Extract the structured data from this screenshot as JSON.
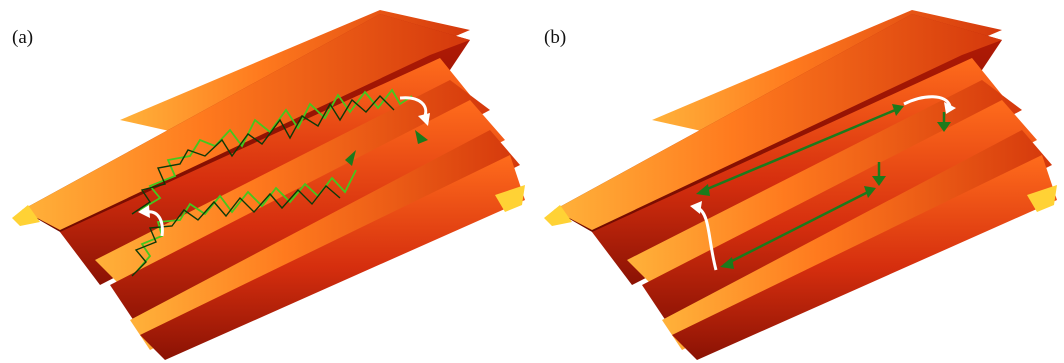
{
  "figure": {
    "panels": [
      {
        "id": "a",
        "label": "(a)",
        "content": "trajectory"
      },
      {
        "id": "b",
        "label": "(b)",
        "content": "schematic-path"
      }
    ],
    "colors": {
      "surface_dark": "#7a0d00",
      "surface_mid": "#c8260c",
      "surface_light": "#ff6a18",
      "surface_rim": "#ffcf2a",
      "trajectory_light_green": "#44c81e",
      "trajectory_dark": "#0d3a08",
      "path_green": "#1c7a1c",
      "hop_arrow": "#ffffff"
    },
    "icons": {
      "hop_arrow": "curved-arrow-icon",
      "direction_arrow": "arrowhead-icon"
    }
  }
}
